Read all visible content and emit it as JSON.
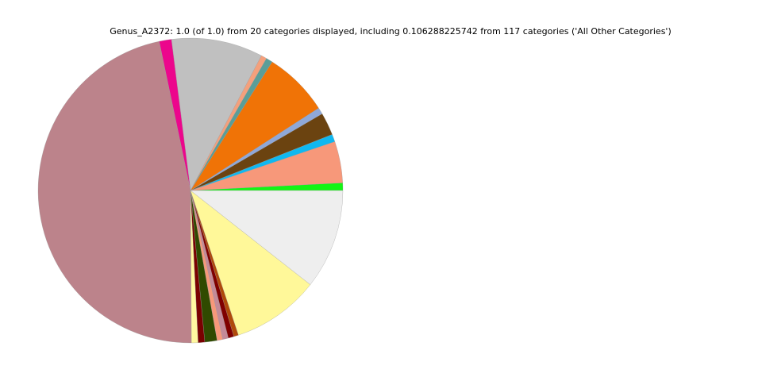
{
  "chart_data": {
    "type": "pie",
    "title": "Genus_A2372: 1.0 (of 1.0) from 20 categories displayed, including 0.106288225742 from 117 categories ('All Other Categories')",
    "start_angle": 0,
    "direction": "counterclockwise",
    "values": [
      0.008,
      0.044,
      0.008,
      0.024,
      0.007,
      0.069,
      0.007,
      0.006,
      0.097,
      0.013,
      0.468,
      0.007,
      0.007,
      0.013,
      0.006,
      0.006,
      0.006,
      0.005,
      0.093,
      0.106
    ],
    "colors": [
      "#14f514",
      "#f7987a",
      "#10b8f0",
      "#6b4310",
      "#8fa8d8",
      "#f07306",
      "#5a9e98",
      "#f4a07c",
      "#c0c0c0",
      "#ec068c",
      "#bc838b",
      "#fff8a0",
      "#7a0000",
      "#304a00",
      "#f7987a",
      "#c48a98",
      "#800000",
      "#b04a0a",
      "#fff899",
      "#eeeeee"
    ]
  }
}
